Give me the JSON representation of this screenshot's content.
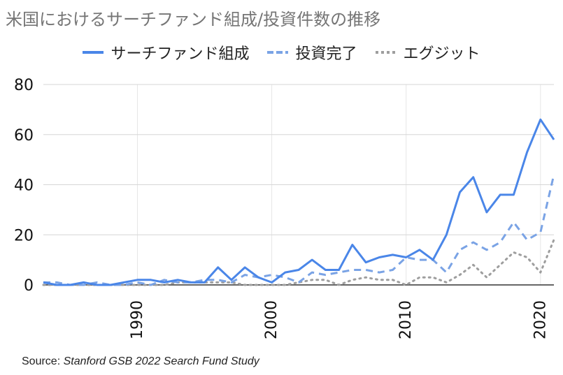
{
  "chart_data": {
    "type": "line",
    "title": "米国におけるサーチファンド組成/投資件数の推移",
    "source_label": "Source:",
    "source_text": "Stanford GSB 2022 Search Fund Study",
    "x": [
      1983,
      1984,
      1985,
      1986,
      1987,
      1988,
      1989,
      1990,
      1991,
      1992,
      1993,
      1994,
      1995,
      1996,
      1997,
      1998,
      1999,
      2000,
      2001,
      2002,
      2003,
      2004,
      2005,
      2006,
      2007,
      2008,
      2009,
      2010,
      2011,
      2012,
      2013,
      2014,
      2015,
      2016,
      2017,
      2018,
      2019,
      2020,
      2021
    ],
    "xlim": [
      1983,
      2021
    ],
    "ylim": [
      0,
      80
    ],
    "y_ticks": [
      0,
      20,
      40,
      60,
      80
    ],
    "x_ticks": [
      1990,
      2000,
      2010,
      2020
    ],
    "grid": true,
    "legend_position": "top",
    "series": [
      {
        "name": "サーチファンド組成",
        "style": "solid",
        "color": "#4a86e8",
        "values": [
          1,
          0,
          0,
          1,
          0,
          0,
          1,
          2,
          2,
          1,
          2,
          1,
          1,
          7,
          2,
          7,
          3,
          1,
          5,
          6,
          10,
          6,
          6,
          16,
          9,
          11,
          12,
          11,
          14,
          10,
          20,
          37,
          43,
          29,
          36,
          36,
          53,
          66,
          58
        ]
      },
      {
        "name": "投資完了",
        "style": "dashed",
        "color": "#7aa3e5",
        "values": [
          1,
          1,
          0,
          0,
          1,
          0,
          0,
          1,
          0,
          2,
          1,
          1,
          2,
          2,
          1,
          4,
          3,
          4,
          3,
          1,
          5,
          4,
          5,
          6,
          6,
          5,
          6,
          11,
          10,
          10,
          5,
          14,
          17,
          14,
          17,
          25,
          18,
          21,
          44
        ]
      },
      {
        "name": "エグジット",
        "style": "dotted",
        "color": "#9e9e9e",
        "values": [
          0,
          0,
          0,
          0,
          0,
          0,
          0,
          0,
          0,
          0,
          1,
          1,
          1,
          1,
          1,
          0,
          0,
          0,
          0,
          1,
          2,
          2,
          0,
          2,
          3,
          2,
          2,
          0,
          3,
          3,
          1,
          4,
          8,
          3,
          8,
          13,
          11,
          5,
          18
        ]
      }
    ]
  }
}
